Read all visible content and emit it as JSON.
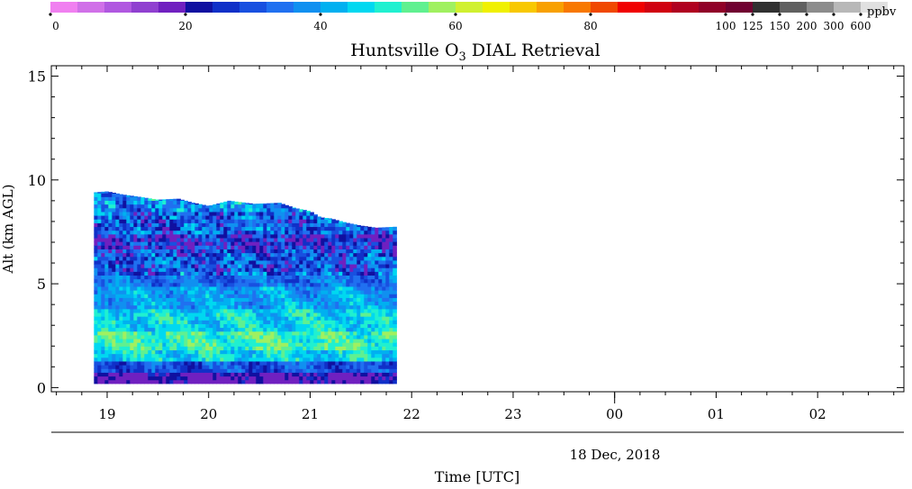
{
  "chart_data": {
    "type": "heatmap",
    "title": "Huntsville O",
    "title_sub": "3",
    "title_rest": " DIAL Retrieval",
    "xlabel": "Time [UTC]",
    "ylabel": "Alt (km AGL)",
    "date_label": "18 Dec, 2018",
    "x_tick_labels": [
      "19",
      "20",
      "21",
      "22",
      "23",
      "00",
      "01",
      "02"
    ],
    "x_tick_hours": [
      19,
      20,
      21,
      22,
      23,
      24,
      25,
      26
    ],
    "xlim_hours": [
      18.45,
      26.85
    ],
    "y_ticks": [
      "0",
      "5",
      "10",
      "15"
    ],
    "y_tick_values": [
      0,
      5,
      10,
      15
    ],
    "ylim": [
      -0.2,
      15.5
    ],
    "data_hours": [
      18.87,
      21.85
    ],
    "data_top_km": [
      [
        18.87,
        9.4
      ],
      [
        19.0,
        9.45
      ],
      [
        19.15,
        9.3
      ],
      [
        19.3,
        9.2
      ],
      [
        19.5,
        9.05
      ],
      [
        19.7,
        9.1
      ],
      [
        19.85,
        8.9
      ],
      [
        20.0,
        8.75
      ],
      [
        20.2,
        9.0
      ],
      [
        20.45,
        8.85
      ],
      [
        20.7,
        8.9
      ],
      [
        20.85,
        8.65
      ],
      [
        21.0,
        8.5
      ],
      [
        21.1,
        8.2
      ],
      [
        21.2,
        8.15
      ],
      [
        21.35,
        7.95
      ],
      [
        21.5,
        7.8
      ],
      [
        21.65,
        7.7
      ],
      [
        21.85,
        7.75
      ]
    ],
    "data_bottom_km": 0.2,
    "colorbar": {
      "unit": "ppbv",
      "tick_labels": [
        "0",
        "20",
        "40",
        "60",
        "80",
        "100",
        "125",
        "150",
        "200",
        "300",
        "600"
      ],
      "colors": [
        "#f080f0",
        "#d070e8",
        "#b058e0",
        "#9040d0",
        "#7020c0",
        "#1010a0",
        "#1030c8",
        "#1850e0",
        "#2070f0",
        "#1090f0",
        "#00b0f0",
        "#00d8f0",
        "#20f0d0",
        "#60f090",
        "#a0f060",
        "#d0f030",
        "#f0f000",
        "#f8c800",
        "#f8a000",
        "#f87800",
        "#f04800",
        "#f00000",
        "#d00010",
        "#b00020",
        "#900028",
        "#700030",
        "#303030",
        "#606060",
        "#8c8c8c",
        "#b8b8b8",
        "#e0e0e0"
      ]
    },
    "profile": [
      {
        "from": 0.2,
        "to": 0.7,
        "value": 18
      },
      {
        "from": 0.7,
        "to": 1.3,
        "value": 30
      },
      {
        "from": 1.3,
        "to": 1.9,
        "value": 46
      },
      {
        "from": 1.9,
        "to": 2.8,
        "value": 52
      },
      {
        "from": 2.8,
        "to": 3.8,
        "value": 46
      },
      {
        "from": 3.8,
        "to": 4.8,
        "value": 40
      },
      {
        "from": 4.8,
        "to": 5.6,
        "value": 34
      },
      {
        "from": 5.6,
        "to": 6.6,
        "value": 30
      },
      {
        "from": 6.6,
        "to": 7.4,
        "value": 24
      },
      {
        "from": 7.4,
        "to": 8.4,
        "value": 32
      },
      {
        "from": 8.4,
        "to": 9.5,
        "value": 38
      }
    ]
  }
}
